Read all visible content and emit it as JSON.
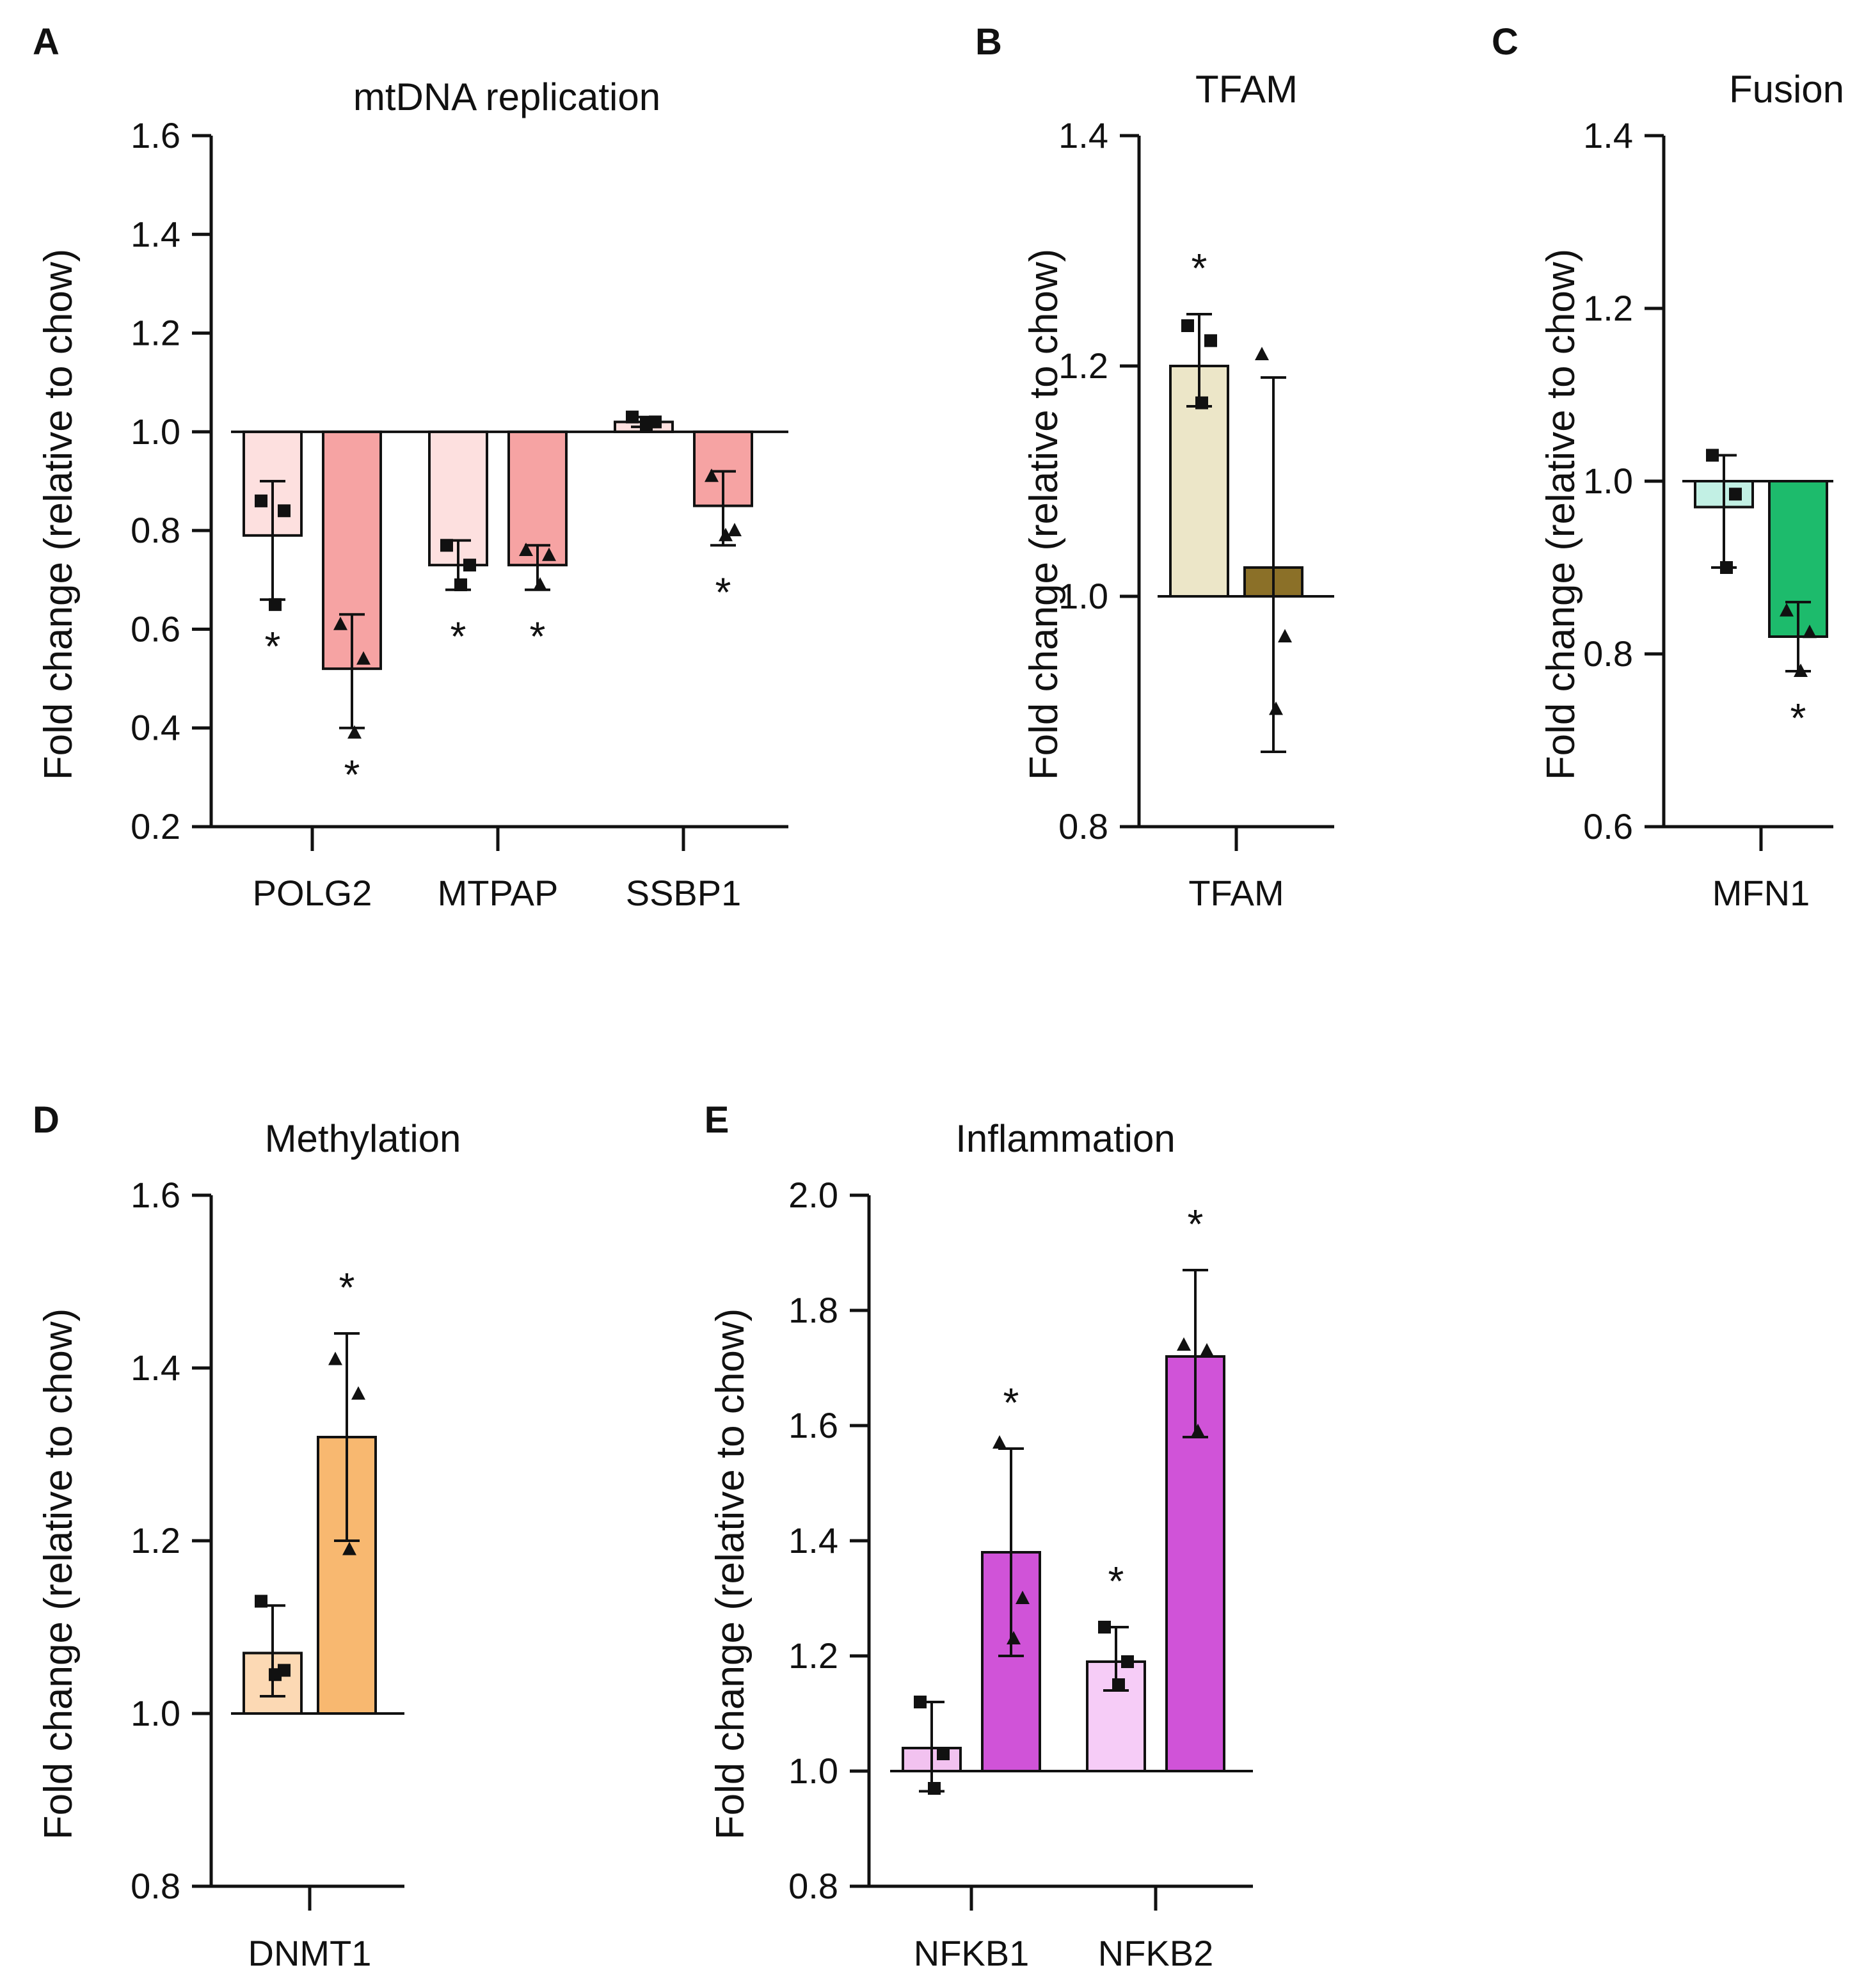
{
  "y_axis_title": "Fold change (relative to chow)",
  "chart_data": [
    {
      "type": "bar",
      "panel": "A",
      "title": "mtDNA replication",
      "ylabel": "Fold change (relative to chow)",
      "ylim": [
        0.2,
        1.6
      ],
      "ticks": [
        "0.2",
        "0.4",
        "0.6",
        "0.8",
        "1.0",
        "1.2",
        "1.4",
        "1.6"
      ],
      "baseline": 1.0,
      "categories": [
        "POLG2",
        "MTPAP",
        "SSBP1"
      ],
      "bars": [
        {
          "category": "POLG2",
          "value": 0.79,
          "err_low": 0.66,
          "err_high": 0.9,
          "points": [
            0.86,
            0.84,
            0.65
          ],
          "marker": "square",
          "color": "#fde0df",
          "sig": true
        },
        {
          "category": "POLG2",
          "value": 0.52,
          "err_low": 0.4,
          "err_high": 0.63,
          "points": [
            0.61,
            0.54,
            0.39
          ],
          "marker": "triangle",
          "color": "#f6a3a3",
          "sig": true
        },
        {
          "category": "MTPAP",
          "value": 0.73,
          "err_low": 0.68,
          "err_high": 0.78,
          "points": [
            0.77,
            0.73,
            0.69
          ],
          "marker": "square",
          "color": "#fde0df",
          "sig": true
        },
        {
          "category": "MTPAP",
          "value": 0.73,
          "err_low": 0.68,
          "err_high": 0.77,
          "points": [
            0.76,
            0.75,
            0.69
          ],
          "marker": "triangle",
          "color": "#f6a3a3",
          "sig": true
        },
        {
          "category": "SSBP1",
          "value": 1.02,
          "err_low": 1.01,
          "err_high": 1.03,
          "points": [
            1.03,
            1.02,
            1.015
          ],
          "marker": "square",
          "color": "#fde0df",
          "sig": false
        },
        {
          "category": "SSBP1",
          "value": 0.85,
          "err_low": 0.77,
          "err_high": 0.92,
          "points": [
            0.91,
            0.8,
            0.79
          ],
          "marker": "triangle",
          "color": "#f6a3a3",
          "sig": true
        }
      ]
    },
    {
      "type": "bar",
      "panel": "B",
      "title": "TFAM",
      "ylabel": "Fold change (relative to chow)",
      "ylim": [
        0.8,
        1.4
      ],
      "ticks": [
        "0.8",
        "1.0",
        "1.2",
        "1.4"
      ],
      "baseline": 1.0,
      "categories": [
        "TFAM"
      ],
      "bars": [
        {
          "category": "TFAM",
          "value": 1.2,
          "err_low": 1.165,
          "err_high": 1.245,
          "points": [
            1.235,
            1.222,
            1.168
          ],
          "marker": "square",
          "color": "#ece6c8",
          "sig": true
        },
        {
          "category": "TFAM",
          "value": 1.025,
          "err_low": 0.865,
          "err_high": 1.19,
          "points": [
            1.21,
            0.965,
            0.902
          ],
          "marker": "triangle",
          "color": "#8b7028",
          "sig": false
        }
      ]
    },
    {
      "type": "bar",
      "panel": "C",
      "title": "Fusion",
      "ylabel": "Fold change (relative to chow)",
      "ylim": [
        0.6,
        1.4
      ],
      "ticks": [
        "0.6",
        "0.8",
        "1.0",
        "1.2",
        "1.4"
      ],
      "baseline": 1.0,
      "categories": [
        "MFN1"
      ],
      "bars": [
        {
          "category": "MFN1",
          "value": 0.97,
          "err_low": 0.9,
          "err_high": 1.03,
          "points": [
            1.03,
            0.985,
            0.9
          ],
          "marker": "square",
          "color": "#c2f0e4",
          "sig": false
        },
        {
          "category": "MFN1",
          "value": 0.82,
          "err_low": 0.78,
          "err_high": 0.86,
          "points": [
            0.85,
            0.825,
            0.78
          ],
          "marker": "triangle",
          "color": "#1dbb6c",
          "sig": true
        }
      ]
    },
    {
      "type": "bar",
      "panel": "D",
      "title": "Methylation",
      "ylabel": "Fold change (relative to chow)",
      "ylim": [
        0.8,
        1.6
      ],
      "ticks": [
        "0.8",
        "1.0",
        "1.2",
        "1.4",
        "1.6"
      ],
      "baseline": 1.0,
      "categories": [
        "DNMT1"
      ],
      "bars": [
        {
          "category": "DNMT1",
          "value": 1.07,
          "err_low": 1.02,
          "err_high": 1.125,
          "points": [
            1.13,
            1.05,
            1.045
          ],
          "marker": "square",
          "color": "#fcd9b4",
          "sig": false
        },
        {
          "category": "DNMT1",
          "value": 1.32,
          "err_low": 1.2,
          "err_high": 1.44,
          "points": [
            1.41,
            1.37,
            1.19
          ],
          "marker": "triangle",
          "color": "#f8b870",
          "sig": true
        }
      ]
    },
    {
      "type": "bar",
      "panel": "E",
      "title": "Inflammation",
      "ylabel": "Fold change (relative to chow)",
      "ylim": [
        0.8,
        2.0
      ],
      "ticks": [
        "0.8",
        "1.0",
        "1.2",
        "1.4",
        "1.6",
        "1.8",
        "2.0"
      ],
      "baseline": 1.0,
      "categories": [
        "NFKB1",
        "NFKB2"
      ],
      "bars": [
        {
          "category": "NFKB1",
          "value": 1.04,
          "err_low": 0.965,
          "err_high": 1.12,
          "points": [
            1.12,
            1.03,
            0.97
          ],
          "marker": "square",
          "color": "#f2c2f0",
          "sig": false
        },
        {
          "category": "NFKB1",
          "value": 1.38,
          "err_low": 1.2,
          "err_high": 1.56,
          "points": [
            1.57,
            1.3,
            1.23
          ],
          "marker": "triangle",
          "color": "#d053d8",
          "sig": true
        },
        {
          "category": "NFKB2",
          "value": 1.19,
          "err_low": 1.14,
          "err_high": 1.25,
          "points": [
            1.25,
            1.19,
            1.15
          ],
          "marker": "square",
          "color": "#f6ccf7",
          "sig": true
        },
        {
          "category": "NFKB2",
          "value": 1.72,
          "err_low": 1.58,
          "err_high": 1.87,
          "points": [
            1.74,
            1.73,
            1.59
          ],
          "marker": "triangle",
          "color": "#d053d8",
          "sig": true
        }
      ]
    }
  ],
  "significance_symbol": "*"
}
